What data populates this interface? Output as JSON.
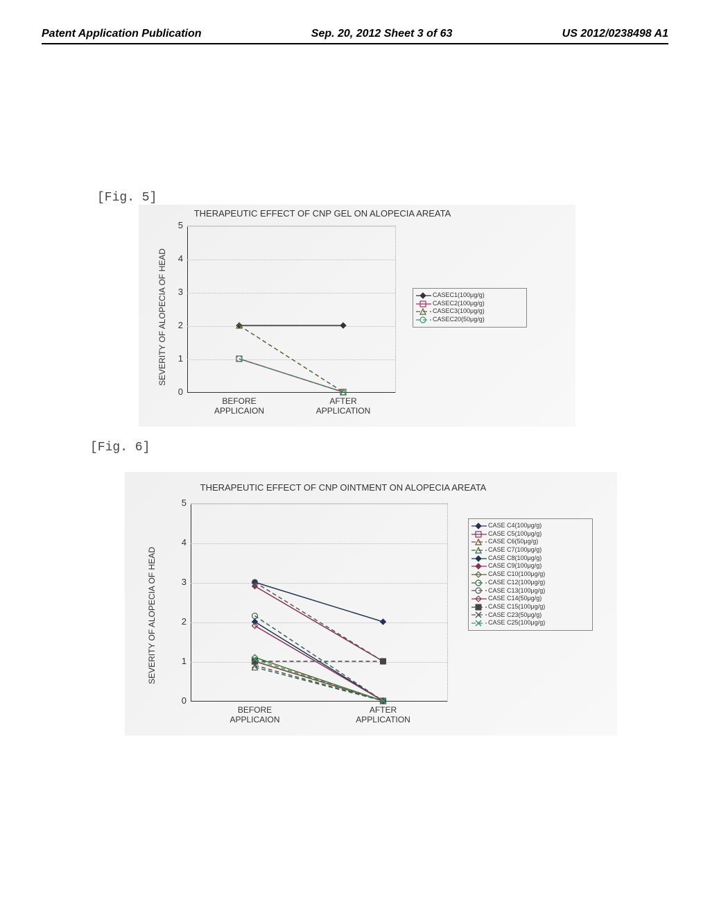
{
  "header": {
    "left": "Patent Application Publication",
    "center": "Sep. 20, 2012  Sheet 3 of 63",
    "right": "US 2012/0238498 A1"
  },
  "fig5": {
    "label": "[Fig. 5]",
    "title": "THERAPEUTIC EFFECT OF CNP GEL ON ALOPECIA AREATA",
    "ylabel": "SEVERITY OF ALOPECIA OF HEAD",
    "ylim": [
      0,
      5
    ],
    "ytick_step": 1,
    "yticks": [
      "0",
      "1",
      "2",
      "3",
      "4",
      "5"
    ],
    "categories": [
      "BEFORE\nAPPLICAION",
      "AFTER\nAPPLICATION"
    ],
    "background_color": "#f2f2f2",
    "grid_color": "#bbbbbb",
    "series": [
      {
        "name": "CASEC1(100μg/g)",
        "color": "#333333",
        "marker": "diamond-filled",
        "dash": "solid",
        "values": [
          2,
          2
        ]
      },
      {
        "name": "CASEC2(100μg/g)",
        "color": "#aa3366",
        "marker": "square-open",
        "dash": "solid",
        "values": [
          1,
          0
        ]
      },
      {
        "name": "CASEC3(100μg/g)",
        "color": "#556633",
        "marker": "triangle-open",
        "dash": "dash",
        "values": [
          2,
          0
        ]
      },
      {
        "name": "CASEC20(50μg/g)",
        "color": "#339966",
        "marker": "circle-open",
        "dash": "dash",
        "values": [
          1,
          0
        ]
      }
    ]
  },
  "fig6": {
    "label": "[Fig. 6]",
    "title": "THERAPEUTIC EFFECT OF CNP OINTMENT ON ALOPECIA AREATA",
    "ylabel": "SEVERITY OF ALOPECIA OF HEAD",
    "ylim": [
      0,
      5
    ],
    "ytick_step": 1,
    "yticks": [
      "0",
      "1",
      "2",
      "3",
      "4",
      "5"
    ],
    "categories": [
      "BEFORE\nAPPLICAION",
      "AFTER\nAPPLICATION"
    ],
    "background_color": "#f2f2f2",
    "grid_color": "#bbbbbb",
    "series": [
      {
        "name": "CASE C4(100μg/g)",
        "color": "#223355",
        "marker": "diamond-filled",
        "dash": "solid",
        "values": [
          2,
          0
        ]
      },
      {
        "name": "CASE C5(100μg/g)",
        "color": "#883355",
        "marker": "square-open",
        "dash": "solid",
        "values": [
          1,
          0
        ]
      },
      {
        "name": "CASE C6(50μg/g)",
        "color": "#665522",
        "marker": "triangle-open",
        "dash": "dash",
        "values": [
          1,
          0
        ]
      },
      {
        "name": "CASE C7(100μg/g)",
        "color": "#336644",
        "marker": "triangle-open",
        "dash": "dash",
        "values": [
          0.85,
          0
        ]
      },
      {
        "name": "CASE C8(100μg/g)",
        "color": "#223355",
        "marker": "diamond-filled",
        "dash": "solid",
        "values": [
          3,
          2
        ]
      },
      {
        "name": "CASE C9(100μg/g)",
        "color": "#883355",
        "marker": "diamond-filled",
        "dash": "solid",
        "values": [
          2.9,
          1
        ]
      },
      {
        "name": "CASE C10(100μg/g)",
        "color": "#556633",
        "marker": "diamond-open",
        "dash": "solid",
        "values": [
          1.1,
          0
        ]
      },
      {
        "name": "CASE C12(100μg/g)",
        "color": "#336644",
        "marker": "circle-open",
        "dash": "dash",
        "values": [
          2.15,
          0
        ]
      },
      {
        "name": "CASE C13(100μg/g)",
        "color": "#555555",
        "marker": "circle-open",
        "dash": "dash",
        "values": [
          3,
          1
        ]
      },
      {
        "name": "CASE C14(50μg/g)",
        "color": "#883355",
        "marker": "diamond-open",
        "dash": "solid",
        "values": [
          1.9,
          0
        ]
      },
      {
        "name": "CASE C15(100μg/g)",
        "color": "#444444",
        "marker": "square-filled",
        "dash": "dash",
        "values": [
          1,
          1
        ]
      },
      {
        "name": "CASE C23(50μg/g)",
        "color": "#555555",
        "marker": "x",
        "dash": "dash",
        "values": [
          0.9,
          0
        ]
      },
      {
        "name": "CASE C25(100μg/g)",
        "color": "#339966",
        "marker": "x",
        "dash": "dash",
        "values": [
          1.05,
          0
        ]
      }
    ]
  }
}
